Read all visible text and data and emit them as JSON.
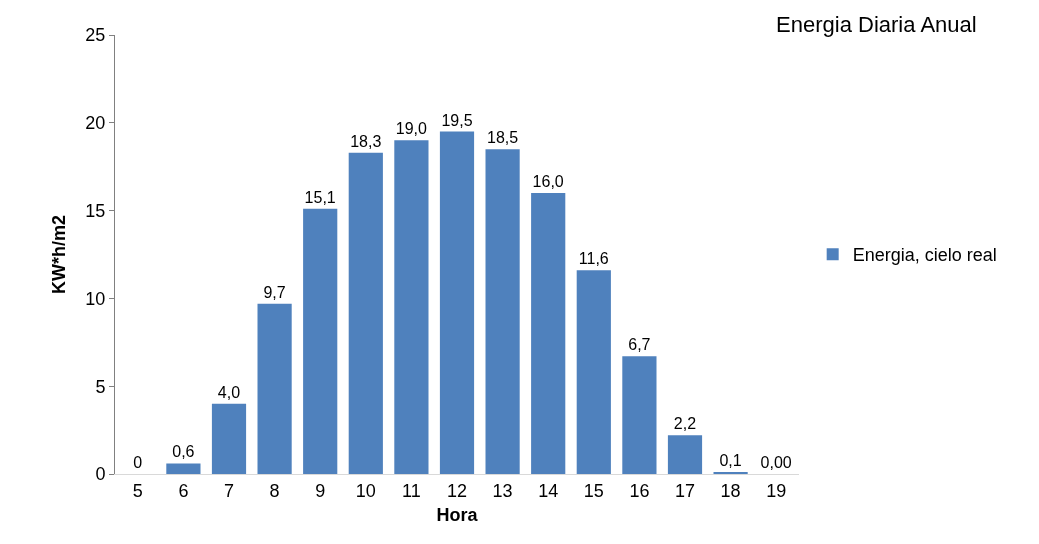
{
  "chart_data": {
    "type": "bar",
    "title": "Energia Diaria Anual",
    "xlabel": "Hora",
    "ylabel": "KW*h/m2",
    "categories": [
      "5",
      "6",
      "7",
      "8",
      "9",
      "10",
      "11",
      "12",
      "13",
      "14",
      "15",
      "16",
      "17",
      "18",
      "19"
    ],
    "series": [
      {
        "name": "Energia, cielo real",
        "color": "#4f81bd",
        "values": [
          0,
          0.6,
          4.0,
          9.7,
          15.1,
          18.3,
          19.0,
          19.5,
          18.5,
          16.0,
          11.6,
          6.7,
          2.2,
          0.1,
          0
        ],
        "value_labels": [
          "0",
          "0,6",
          "4,0",
          "9,7",
          "15,1",
          "18,3",
          "19,0",
          "19,5",
          "18,5",
          "16,0",
          "11,6",
          "6,7",
          "2,2",
          "0,1",
          "0,00"
        ]
      }
    ],
    "ylim": [
      0,
      25
    ],
    "yticks": [
      0,
      5,
      10,
      15,
      20,
      25
    ],
    "legend": "right"
  }
}
